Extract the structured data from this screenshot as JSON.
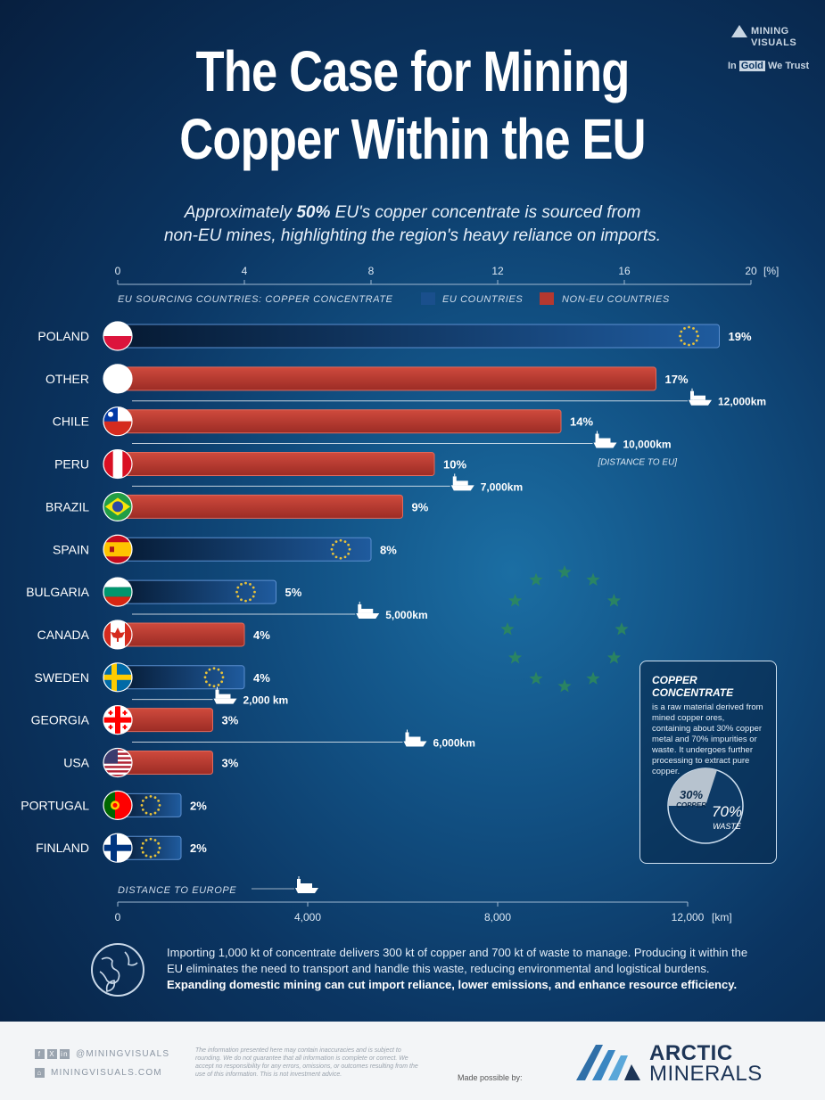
{
  "title_line1": "The Case for Mining",
  "title_line2": "Copper Within the EU",
  "subtitle_pre": "Approximately ",
  "subtitle_bold": "50%",
  "subtitle_post": " EU's copper concentrate is sourced from",
  "subtitle_line2": "non-EU mines, highlighting the region's heavy reliance on imports.",
  "brand": {
    "line1": "MINING",
    "line2": "VISUALS",
    "partner_pre": "In ",
    "partner_gold": "Gold",
    "partner_post": " We Trust"
  },
  "legend": {
    "heading": "EU SOURCING COUNTRIES: COPPER CONCENTRATE",
    "eu": "EU COUNTRIES",
    "non_eu": "NON-EU COUNTRIES"
  },
  "colors": {
    "eu": "#1a4f8c",
    "non_eu": "#b5382f",
    "accent_gold": "#e8c23a",
    "star_green": "#2e8a5a"
  },
  "chart_data": {
    "type": "bar",
    "top_axis": {
      "ticks": [
        "0",
        "4",
        "8",
        "12",
        "16",
        "20"
      ],
      "tick_values": [
        0,
        4,
        8,
        12,
        16,
        20
      ],
      "unit": "[%]",
      "range": [
        0,
        20
      ]
    },
    "bottom_axis": {
      "label": "DISTANCE TO EUROPE",
      "ticks": [
        "0",
        "4,000",
        "8,000",
        "12,000"
      ],
      "tick_values": [
        0,
        4000,
        8000,
        12000
      ],
      "unit": "[km]",
      "range": [
        0,
        12000
      ]
    },
    "distance_note": "[DISTANCE TO EU]",
    "countries": [
      {
        "name": "POLAND",
        "share": 19,
        "label": "19%",
        "group": "eu",
        "flag": "poland"
      },
      {
        "name": "OTHER",
        "share": 17,
        "label": "17%",
        "group": "non_eu",
        "flag": "none"
      },
      {
        "name": "CHILE",
        "share": 14,
        "label": "14%",
        "group": "non_eu",
        "flag": "chile",
        "distance": 12000,
        "distance_label": "12,000km"
      },
      {
        "name": "PERU",
        "share": 10,
        "label": "10%",
        "group": "non_eu",
        "flag": "peru",
        "distance": 10000,
        "distance_label": "10,000km"
      },
      {
        "name": "BRAZIL",
        "share": 9,
        "label": "9%",
        "group": "non_eu",
        "flag": "brazil",
        "distance": 7000,
        "distance_label": "7,000km"
      },
      {
        "name": "SPAIN",
        "share": 8,
        "label": "8%",
        "group": "eu",
        "flag": "spain"
      },
      {
        "name": "BULGARIA",
        "share": 5,
        "label": "5%",
        "group": "eu",
        "flag": "bulgaria"
      },
      {
        "name": "CANADA",
        "share": 4,
        "label": "4%",
        "group": "non_eu",
        "flag": "canada",
        "distance": 5000,
        "distance_label": "5,000km"
      },
      {
        "name": "SWEDEN",
        "share": 4,
        "label": "4%",
        "group": "eu",
        "flag": "sweden"
      },
      {
        "name": "GEORGIA",
        "share": 3,
        "label": "3%",
        "group": "non_eu",
        "flag": "georgia",
        "distance": 2000,
        "distance_label": "2,000 km"
      },
      {
        "name": "USA",
        "share": 3,
        "label": "3%",
        "group": "non_eu",
        "flag": "usa",
        "distance": 6000,
        "distance_label": "6,000km"
      },
      {
        "name": "PORTUGAL",
        "share": 2,
        "label": "2%",
        "group": "eu",
        "flag": "portugal"
      },
      {
        "name": "FINLAND",
        "share": 2,
        "label": "2%",
        "group": "eu",
        "flag": "finland"
      }
    ]
  },
  "info_box": {
    "title": "COPPER CONCENTRATE",
    "text": "is a raw material derived from mined copper ores, containing about 30% copper metal and 70% impurities or waste. It undergoes further processing to extract pure copper.",
    "pie": [
      {
        "label_pct": "30%",
        "label_name": "COPPER",
        "value": 30
      },
      {
        "label_pct": "70%",
        "label_name": "WASTE",
        "value": 70
      }
    ]
  },
  "footnote": {
    "text": "Importing 1,000 kt of concentrate delivers 300 kt of copper and 700 kt of waste to manage. Producing it within the EU eliminates the need to transport and handle this waste, reducing environmental and logistical burdens.",
    "bold": "Expanding domestic mining can cut import reliance, lower emissions, and enhance resource efficiency."
  },
  "footer": {
    "handle": "@MININGVISUALS",
    "site": "MININGVISUALS.COM",
    "disclaimer": "The information presented here may contain inaccuracies and is subject to rounding. We do not guarantee that all information is complete or correct. We accept no responsibility for any errors, omissions, or outcomes resulting from the use of this information. This is not investment advice.",
    "made_possible": "Made possible by:",
    "sponsor_line1": "ARCTIC",
    "sponsor_line2": "MINERALS"
  }
}
